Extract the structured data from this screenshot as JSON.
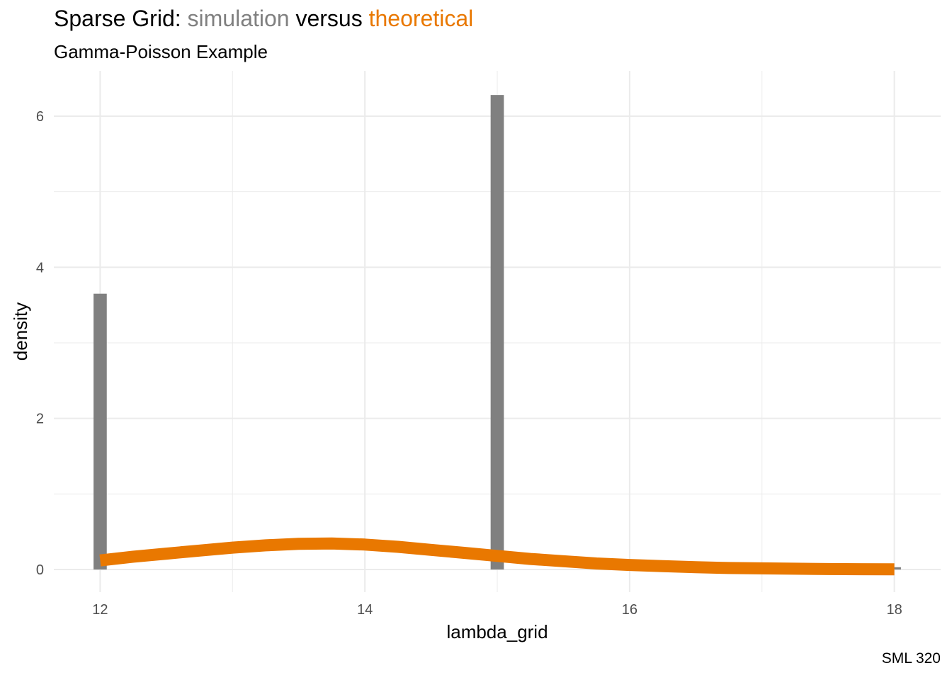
{
  "chart_data": {
    "type": "bar",
    "title": {
      "prefix": "Sparse Grid: ",
      "sim_word": "simulation",
      "mid": " versus ",
      "theory_word": "theoretical"
    },
    "subtitle": "Gamma-Poisson Example",
    "caption": "SML 320",
    "xlabel": "lambda_grid",
    "ylabel": "density",
    "xlim": [
      11.65,
      18.35
    ],
    "ylim": [
      -0.3,
      6.6
    ],
    "x_ticks": [
      12,
      14,
      16,
      18
    ],
    "x_minor": [
      13,
      15,
      17
    ],
    "y_ticks": [
      0,
      2,
      4,
      6
    ],
    "y_minor": [
      1,
      3,
      5
    ],
    "grid": true,
    "colors": {
      "simulation": "#808080",
      "theoretical": "#E97800",
      "grid": "#ebebeb"
    },
    "series": [
      {
        "type": "bar",
        "bar_width": 0.1,
        "bars": [
          {
            "x": 12,
            "y": 3.65
          },
          {
            "x": 15,
            "y": 6.28
          },
          {
            "x": 18,
            "y": 0.03
          }
        ]
      },
      {
        "type": "line",
        "points": [
          [
            12.0,
            0.12
          ],
          [
            12.25,
            0.17
          ],
          [
            12.5,
            0.21
          ],
          [
            12.75,
            0.25
          ],
          [
            13.0,
            0.29
          ],
          [
            13.25,
            0.32
          ],
          [
            13.5,
            0.34
          ],
          [
            13.75,
            0.345
          ],
          [
            14.0,
            0.33
          ],
          [
            14.25,
            0.3
          ],
          [
            14.5,
            0.26
          ],
          [
            14.75,
            0.22
          ],
          [
            15.0,
            0.18
          ],
          [
            15.25,
            0.14
          ],
          [
            15.5,
            0.11
          ],
          [
            15.75,
            0.08
          ],
          [
            16.0,
            0.06
          ],
          [
            16.25,
            0.045
          ],
          [
            16.5,
            0.03
          ],
          [
            16.75,
            0.02
          ],
          [
            17.0,
            0.015
          ],
          [
            17.25,
            0.01
          ],
          [
            17.5,
            0.006
          ],
          [
            17.75,
            0.004
          ],
          [
            18.0,
            0.003
          ]
        ]
      }
    ]
  }
}
